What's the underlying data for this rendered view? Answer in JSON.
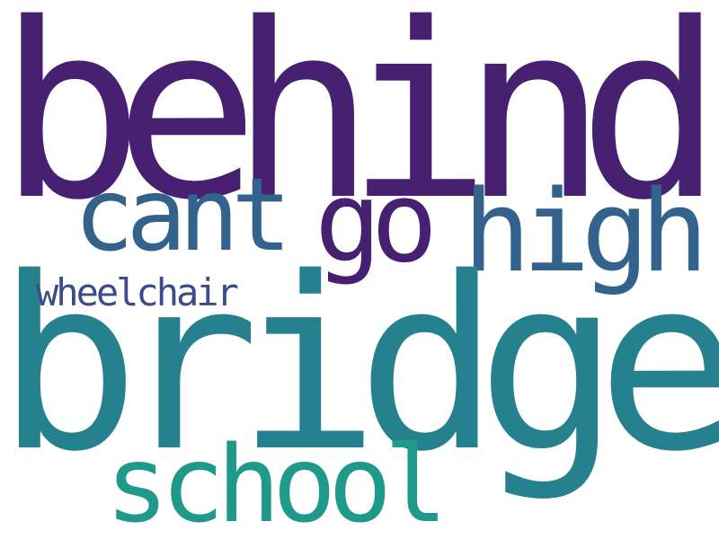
{
  "background": "#ffffff",
  "words": [
    {
      "id": "behind",
      "text": "behind",
      "color": "#482071"
    },
    {
      "id": "bridge",
      "text": "bridge",
      "color": "#26818e"
    },
    {
      "id": "cant",
      "text": "cant",
      "color": "#33638d"
    },
    {
      "id": "go",
      "text": "go",
      "color": "#482071"
    },
    {
      "id": "high",
      "text": "high",
      "color": "#33638d"
    },
    {
      "id": "wheelchair",
      "text": "wheelchair",
      "color": "#3d4b89"
    },
    {
      "id": "school",
      "text": "school",
      "color": "#1f9a8a"
    }
  ]
}
